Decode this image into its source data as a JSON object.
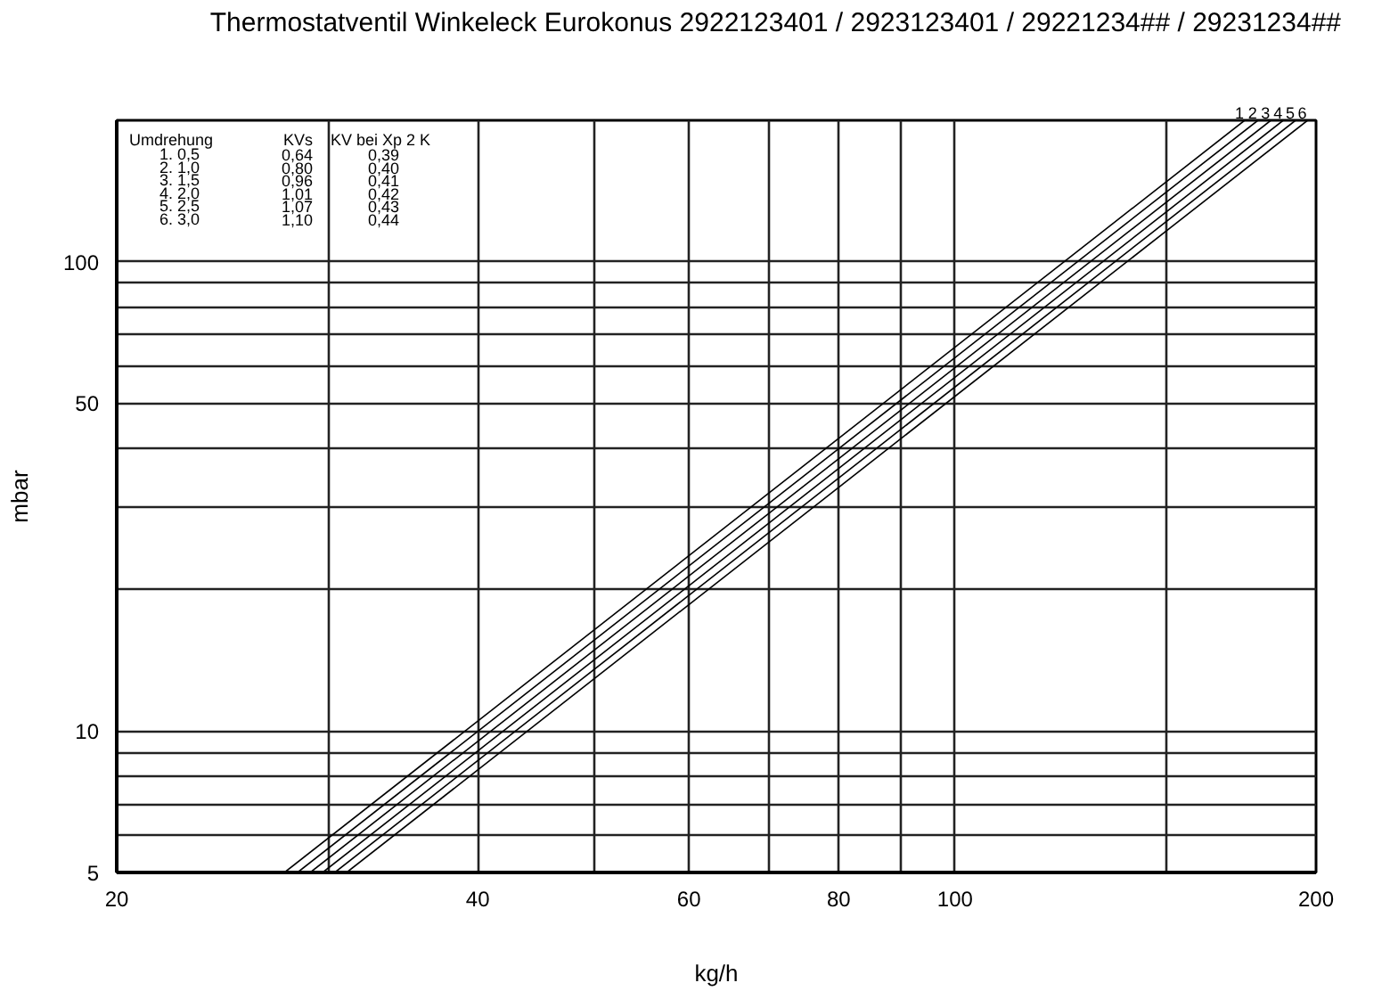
{
  "chart_data": {
    "type": "line",
    "title": "Thermostatventil Winkeleck Eurokonus 2922123401 / 2923123401 / 29221234## / 29231234##",
    "xlabel": "kg/h",
    "ylabel": "mbar",
    "annotations": [
      "Umdrehung",
      "KVs",
      "KV bei Xp 2 K",
      "1. 0,5",
      "0,64",
      "0,39",
      "2. 1,0",
      "0,80",
      "0,40",
      "3. 1,5",
      "0,96",
      "0,41",
      "4. 2,0",
      "1,01",
      "0,42",
      "5. 2,5",
      "1,07",
      "0,43",
      "6. 3,0",
      "1,10",
      "0,44"
    ],
    "series": [
      {
        "name": "1",
        "color": "#000000",
        "x": [
          27.6,
          174.4
        ],
        "values": [
          5,
          200
        ]
      },
      {
        "name": "2",
        "color": "#000000",
        "x": [
          28.3,
          178.9
        ],
        "values": [
          5,
          200
        ]
      },
      {
        "name": "3",
        "color": "#000000",
        "x": [
          29.0,
          183.4
        ],
        "values": [
          5,
          200
        ]
      },
      {
        "name": "4",
        "color": "#000000",
        "x": [
          29.7,
          187.8
        ],
        "values": [
          5,
          200
        ]
      },
      {
        "name": "5",
        "color": "#000000",
        "x": [
          30.4,
          192.3
        ],
        "values": [
          5,
          200
        ]
      },
      {
        "name": "6",
        "color": "#000000",
        "x": [
          31.1,
          196.8
        ],
        "values": [
          5,
          200
        ]
      }
    ],
    "xlim": [
      20,
      200
    ],
    "ylim": [
      5,
      200
    ],
    "xticks": [
      20,
      {
        "value": 30,
        "label": null
      },
      40,
      {
        "value": 50,
        "label": null
      },
      60,
      {
        "value": 70,
        "label": null
      },
      80,
      {
        "value": 90,
        "label": null
      },
      100,
      {
        "value": 150,
        "label": null
      },
      200
    ],
    "yticks": [
      5,
      {
        "value": 6,
        "label": null
      },
      {
        "value": 7,
        "label": null
      },
      {
        "value": 8,
        "label": null
      },
      {
        "value": 9,
        "label": null
      },
      10,
      {
        "value": 20,
        "label": null
      },
      {
        "value": 30,
        "label": null
      },
      {
        "value": 40,
        "label": null
      },
      50,
      {
        "value": 60,
        "label": null
      },
      {
        "value": 70,
        "label": null
      },
      {
        "value": 80,
        "label": null
      },
      {
        "value": 90,
        "label": null
      },
      100
    ],
    "log": "xy",
    "grid": true,
    "marker": "none",
    "line_style": "solid"
  }
}
